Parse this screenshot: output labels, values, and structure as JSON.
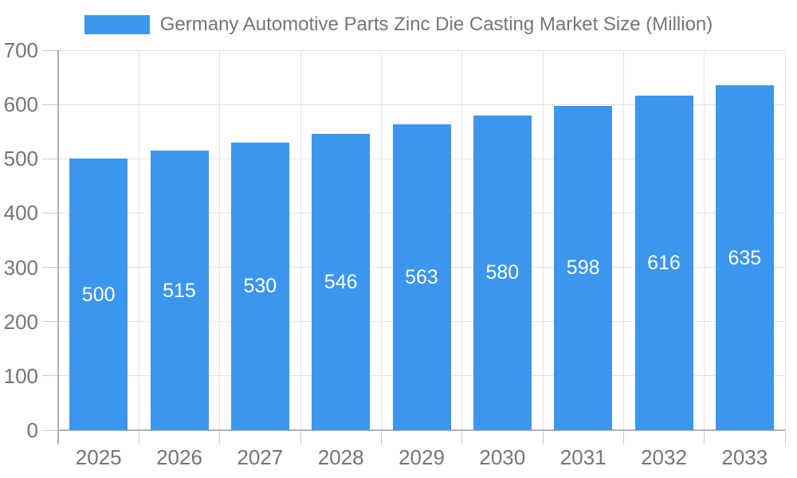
{
  "chart_data": {
    "type": "bar",
    "title": "Germany Automotive Parts Zinc Die Casting Market Size (Million)",
    "categories": [
      "2025",
      "2026",
      "2027",
      "2028",
      "2029",
      "2030",
      "2031",
      "2032",
      "2033"
    ],
    "values": [
      500,
      515,
      530,
      546,
      563,
      580,
      598,
      616,
      635
    ],
    "xlabel": "",
    "ylabel": "",
    "ylim": [
      0,
      700
    ],
    "yticks": [
      0,
      100,
      200,
      300,
      400,
      500,
      600,
      700
    ],
    "grid": true,
    "legend_position": "top",
    "value_labels": "inside-center",
    "colors": {
      "bar": "#3c96ee",
      "bar_value_text": "#ffffff",
      "axis_text": "#757575",
      "axis_line": "#b1b1b1",
      "grid_line": "#e2e2e2",
      "tick_line": "#c9c9c9",
      "background": "#ffffff"
    }
  }
}
